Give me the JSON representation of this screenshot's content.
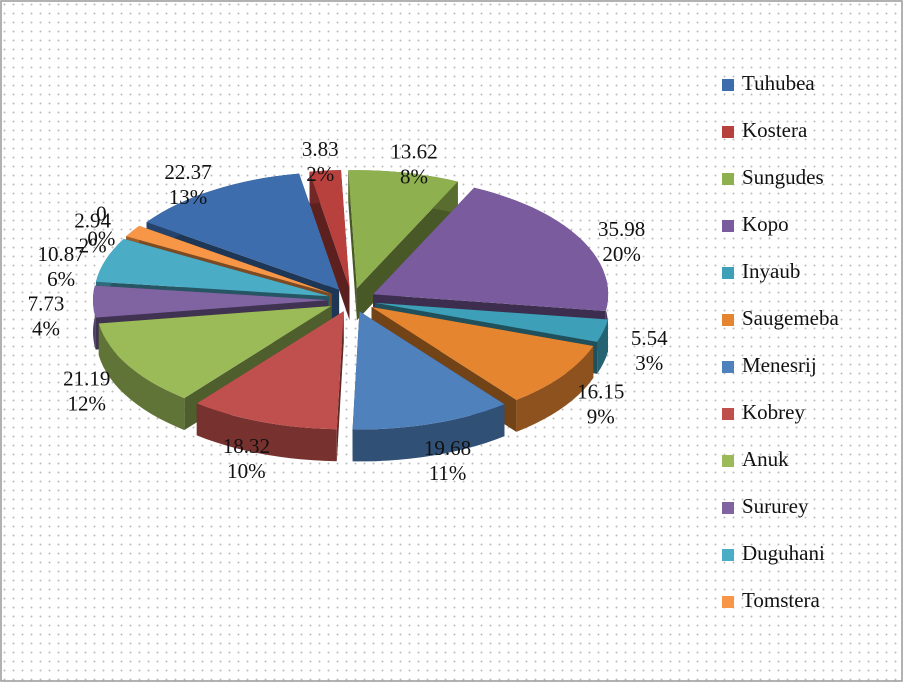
{
  "chart_data": {
    "type": "pie",
    "three_d": true,
    "exploded": true,
    "categories": [
      "Tuhubea",
      "Kostera",
      "Sungudes",
      "Kopo",
      "Inyaub",
      "Saugemeba",
      "Menesrij",
      "Kobrey",
      "Anuk",
      "Sururey",
      "Duguhani",
      "Tomstera",
      null
    ],
    "values": [
      22.37,
      3.83,
      13.62,
      35.98,
      5.54,
      16.15,
      19.68,
      18.32,
      21.19,
      7.73,
      10.87,
      2.94,
      0
    ],
    "percentages": [
      "13%",
      "2%",
      "8%",
      "20%",
      "3%",
      "9%",
      "11%",
      "10%",
      "12%",
      "4%",
      "6%",
      "2%",
      "0%"
    ],
    "colors": [
      "#3d6dad",
      "#b8403d",
      "#8fb04e",
      "#7a5c9e",
      "#3e9fb8",
      "#e58530",
      "#4f81bd",
      "#c0504d",
      "#9bbb59",
      "#8064a2",
      "#4bacc6",
      "#f79646"
    ],
    "legend": "right"
  }
}
